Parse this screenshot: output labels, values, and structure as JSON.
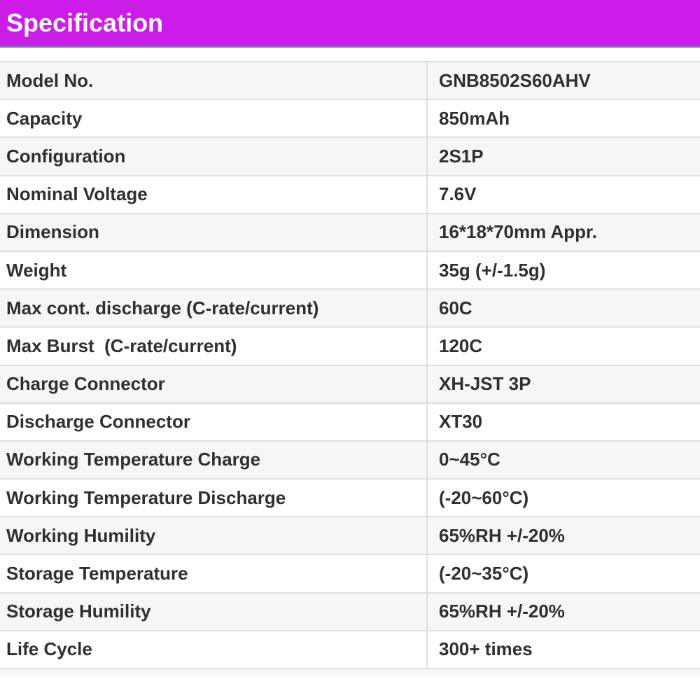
{
  "page": {
    "title": "Specification"
  },
  "colors": {
    "header_bg": "#cb1ce9",
    "header_underline": "#7177ad",
    "row_stripe": "#f5f6f8",
    "border": "#dcdee1",
    "text": "#303030",
    "header_text": "#ffffff"
  },
  "table": {
    "columns": [
      "attribute",
      "value"
    ],
    "rows": [
      {
        "label": "Model No.",
        "value": "GNB8502S60AHV"
      },
      {
        "label": "Capacity",
        "value": "850mAh"
      },
      {
        "label": "Configuration",
        "value": "2S1P"
      },
      {
        "label": "Nominal Voltage",
        "value": "7.6V"
      },
      {
        "label": "Dimension",
        "value": "16*18*70mm Appr."
      },
      {
        "label": "Weight",
        "value": "35g (+/-1.5g)"
      },
      {
        "label": "Max cont. discharge (C-rate/current)",
        "value": "60C"
      },
      {
        "label": "Max Burst  (C-rate/current)",
        "value": "120C"
      },
      {
        "label": "Charge Connector",
        "value": "XH-JST 3P"
      },
      {
        "label": "Discharge Connector",
        "value": "XT30"
      },
      {
        "label": "Working Temperature Charge",
        "value": "0~45°C"
      },
      {
        "label": "Working Temperature Discharge",
        "value": "(-20~60°C)"
      },
      {
        "label": "Working Humility",
        "value": "65%RH +/-20%"
      },
      {
        "label": "Storage Temperature",
        "value": "(-20~35°C)"
      },
      {
        "label": "Storage Humility",
        "value": "65%RH +/-20%"
      },
      {
        "label": "Life Cycle",
        "value": "300+ times"
      }
    ]
  }
}
